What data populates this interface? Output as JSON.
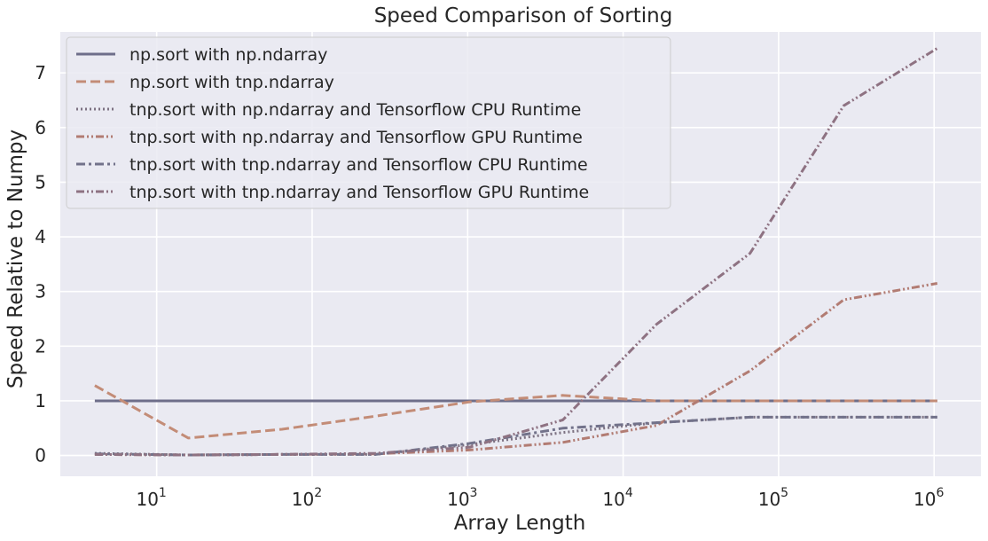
{
  "chart_data": {
    "type": "line",
    "title": "Speed Comparison of Sorting",
    "xlabel": "Array Length",
    "ylabel": "Speed Relative to Numpy",
    "xscale": "log",
    "xlim": [
      2.4,
      2000000
    ],
    "ylim": [
      -0.38,
      7.75
    ],
    "xticks": [
      {
        "value": 10,
        "base": "10",
        "exp": "1"
      },
      {
        "value": 100,
        "base": "10",
        "exp": "2"
      },
      {
        "value": 1000,
        "base": "10",
        "exp": "3"
      },
      {
        "value": 10000,
        "base": "10",
        "exp": "4"
      },
      {
        "value": 100000,
        "base": "10",
        "exp": "5"
      },
      {
        "value": 1000000,
        "base": "10",
        "exp": "6"
      }
    ],
    "yticks": [
      0,
      1,
      2,
      3,
      4,
      5,
      6,
      7
    ],
    "grid": true,
    "legend_position": "top-left",
    "x": [
      4,
      16,
      64,
      256,
      1024,
      4096,
      16384,
      65536,
      262144,
      1048576
    ],
    "series": [
      {
        "name": "np.sort with np.ndarray",
        "color": "#6e6e8a",
        "dash": "none",
        "values": [
          1.0,
          1.0,
          1.0,
          1.0,
          1.0,
          1.0,
          1.0,
          1.0,
          1.0,
          1.0
        ]
      },
      {
        "name": "np.sort with tnp.ndarray",
        "color": "#c38c77",
        "dash": "dashed",
        "values": [
          1.28,
          0.32,
          0.48,
          0.72,
          0.98,
          1.1,
          1.0,
          1.0,
          1.0,
          1.0
        ]
      },
      {
        "name": "tnp.sort with np.ndarray and Tensorflow CPU Runtime",
        "color": "#7d7282",
        "dash": "dotted",
        "values": [
          0.04,
          0.01,
          0.02,
          0.02,
          0.2,
          0.42,
          0.6,
          0.7,
          0.7,
          0.7
        ]
      },
      {
        "name": "tnp.sort with np.ndarray and Tensorflow GPU Runtime",
        "color": "#b27c73",
        "dash": "dashdotdot",
        "values": [
          0.02,
          0.01,
          0.02,
          0.03,
          0.1,
          0.24,
          0.55,
          1.55,
          2.85,
          3.15
        ]
      },
      {
        "name": "tnp.sort with tnp.ndarray and Tensorflow CPU Runtime",
        "color": "#72728a",
        "dash": "dashdot",
        "values": [
          0.03,
          0.01,
          0.02,
          0.02,
          0.22,
          0.5,
          0.6,
          0.7,
          0.7,
          0.7
        ]
      },
      {
        "name": "tnp.sort with tnp.ndarray and Tensorflow GPU Runtime",
        "color": "#8e7282",
        "dash": "dashdotdot",
        "values": [
          0.02,
          0.01,
          0.02,
          0.04,
          0.15,
          0.65,
          2.4,
          3.7,
          6.4,
          7.45
        ]
      }
    ]
  }
}
